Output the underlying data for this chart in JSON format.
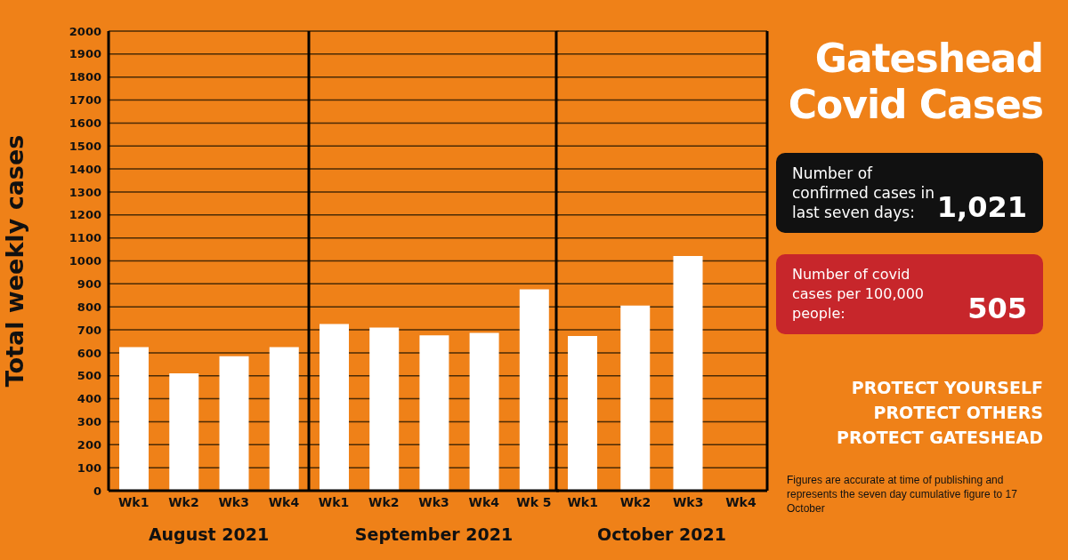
{
  "chart_data": [
    {
      "type": "bar",
      "categories": [
        "Wk1",
        "Wk2",
        "Wk3",
        "Wk4"
      ],
      "values": [
        625,
        511,
        585,
        625
      ],
      "color": "#ffffff",
      "ylim": [
        0,
        2000
      ],
      "yticks": [
        0,
        100,
        200,
        300,
        400,
        500,
        600,
        700,
        800,
        900,
        1000,
        1100,
        1200,
        1300,
        1400,
        1500,
        1600,
        1700,
        1800,
        1900,
        2000
      ],
      "grid": "y",
      "ylabel": "Total weekly cases",
      "xlabel": "August 2021"
    },
    {
      "type": "bar",
      "categories": [
        "Wk1",
        "Wk2",
        "Wk3",
        "Wk4",
        "Wk 5"
      ],
      "values": [
        725,
        710,
        676,
        687,
        876
      ],
      "color": "#ffffff",
      "ylim": [
        0,
        2000
      ],
      "yticks": [
        0,
        100,
        200,
        300,
        400,
        500,
        600,
        700,
        800,
        900,
        1000,
        1100,
        1200,
        1300,
        1400,
        1500,
        1600,
        1700,
        1800,
        1900,
        2000
      ],
      "grid": "y",
      "tick_labels": "x",
      "xlabel": "September 2021"
    },
    {
      "type": "bar",
      "categories": [
        "Wk1",
        "Wk2",
        "Wk3",
        "Wk4"
      ],
      "values": [
        673,
        806,
        1021,
        null
      ],
      "color": "#ffffff",
      "ylim": [
        0,
        2000
      ],
      "yticks": [
        0,
        100,
        200,
        300,
        400,
        500,
        600,
        700,
        800,
        900,
        1000,
        1100,
        1200,
        1300,
        1400,
        1500,
        1600,
        1700,
        1800,
        1900,
        2000
      ],
      "grid": "y",
      "tick_labels": "x",
      "xlabel": "October 2021"
    },
    {
      "type": "other",
      "title": "Gateshead Covid Cases",
      "annotations": [
        "Number of confirmed cases in last seven days:",
        "1,021",
        "Number of covid cases per 100,000 people:",
        "505",
        "PROTECT YOURSELF",
        "PROTECT OTHERS",
        "PROTECT GATESHEAD",
        "Figures are accurate at time of publishing and represents the seven day cumulative figure to 17 October"
      ]
    }
  ]
}
